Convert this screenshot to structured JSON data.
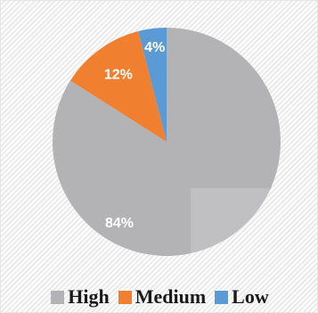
{
  "chart_data": {
    "type": "pie",
    "title": "",
    "categories": [
      "High",
      "Medium",
      "Low"
    ],
    "values": [
      84,
      12,
      4
    ],
    "labels": [
      "84%",
      "12%",
      "4%"
    ],
    "colors": [
      "#b3b3b5",
      "#f07f30",
      "#5b9bd5"
    ],
    "start_angle_deg": 0,
    "direction": "clockwise",
    "legend_position": "bottom",
    "grid": false
  },
  "legend": {
    "items": [
      {
        "label": "High",
        "color": "#b3b3b5"
      },
      {
        "label": "Medium",
        "color": "#f07f30"
      },
      {
        "label": "Low",
        "color": "#5b9bd5"
      }
    ]
  }
}
